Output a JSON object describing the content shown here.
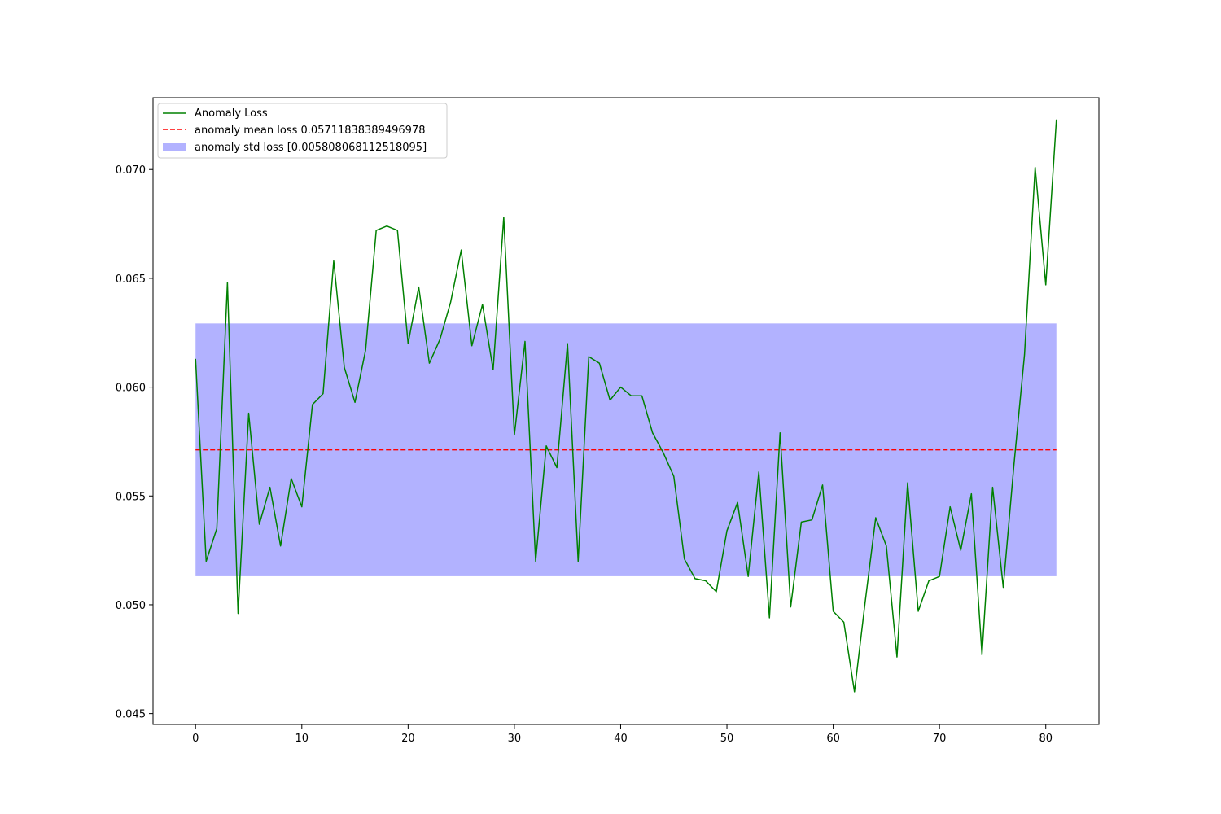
{
  "chart_data": {
    "type": "line",
    "title": "",
    "xlabel": "",
    "ylabel": "",
    "xlim": [
      -4,
      85
    ],
    "ylim": [
      0.0445,
      0.0733
    ],
    "xticks": [
      0,
      10,
      20,
      30,
      40,
      50,
      60,
      70,
      80
    ],
    "yticks": [
      0.045,
      0.05,
      0.055,
      0.06,
      0.065,
      0.07
    ],
    "x_tick_labels": [
      "0",
      "10",
      "20",
      "30",
      "40",
      "50",
      "60",
      "70",
      "80"
    ],
    "y_tick_labels": [
      "0.045",
      "0.050",
      "0.055",
      "0.060",
      "0.065",
      "0.070"
    ],
    "grid": false,
    "legend_position": "top-left",
    "series": [
      {
        "name": "Anomaly Loss",
        "kind": "line",
        "color": "#008000",
        "x_start": 0,
        "values": [
          0.0613,
          0.052,
          0.0535,
          0.0648,
          0.0496,
          0.0588,
          0.0537,
          0.0554,
          0.0527,
          0.0558,
          0.0545,
          0.0592,
          0.0597,
          0.0658,
          0.0609,
          0.0593,
          0.0617,
          0.0672,
          0.0674,
          0.0672,
          0.062,
          0.0646,
          0.0611,
          0.0622,
          0.0639,
          0.0663,
          0.0619,
          0.0638,
          0.0608,
          0.0678,
          0.0578,
          0.0621,
          0.052,
          0.0573,
          0.0563,
          0.062,
          0.052,
          0.0614,
          0.0611,
          0.0594,
          0.06,
          0.0596,
          0.0596,
          0.0579,
          0.057,
          0.0559,
          0.0521,
          0.0512,
          0.0511,
          0.0506,
          0.0534,
          0.0547,
          0.0513,
          0.0561,
          0.0494,
          0.0579,
          0.0499,
          0.0538,
          0.0539,
          0.0555,
          0.0497,
          0.0492,
          0.046,
          0.0501,
          0.054,
          0.0527,
          0.0476,
          0.0556,
          0.0497,
          0.0511,
          0.0513,
          0.0545,
          0.0525,
          0.0551,
          0.0477,
          0.0554,
          0.0508,
          0.0564,
          0.0615,
          0.0701,
          0.0647,
          0.0723
        ]
      },
      {
        "name": "anomaly mean loss 0.05711838389496978",
        "kind": "hline",
        "color": "#ff0000",
        "value": 0.05711838389496978,
        "x_range": [
          0,
          81
        ]
      },
      {
        "name": "anomaly std loss [0.005808068112518095]",
        "kind": "band",
        "color": "#0000ff",
        "opacity": 0.3,
        "lower": 0.05131031578245169,
        "upper": 0.06292645200748788,
        "x_range": [
          0,
          81
        ]
      }
    ]
  }
}
